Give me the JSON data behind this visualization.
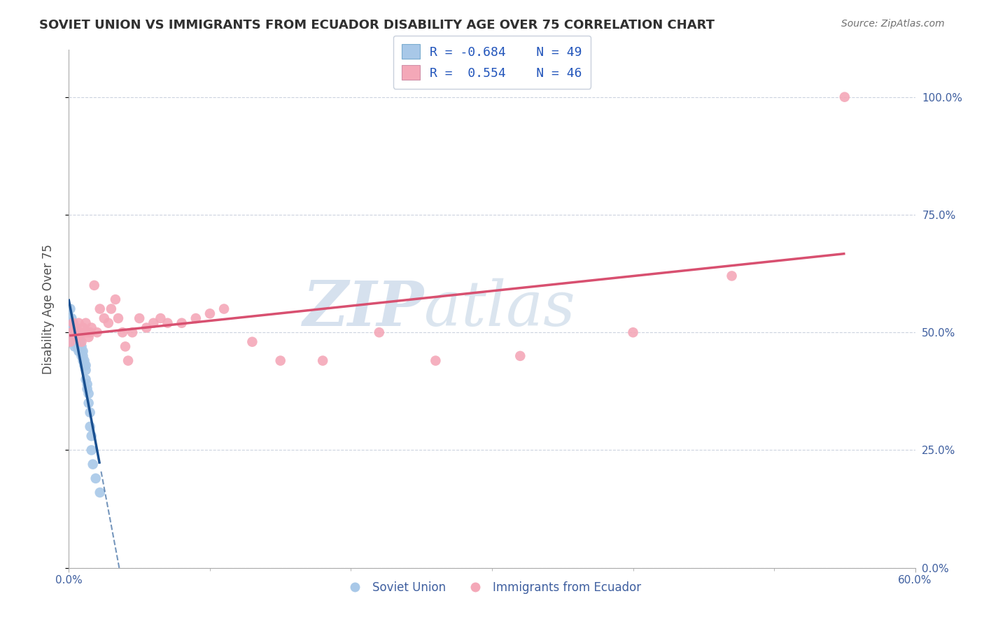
{
  "title": "SOVIET UNION VS IMMIGRANTS FROM ECUADOR DISABILITY AGE OVER 75 CORRELATION CHART",
  "source": "Source: ZipAtlas.com",
  "ylabel": "Disability Age Over 75",
  "x_min": 0.0,
  "x_max": 0.6,
  "y_min": 0.0,
  "y_max": 1.1,
  "y_tick_labels_right": [
    "0.0%",
    "25.0%",
    "50.0%",
    "75.0%",
    "100.0%"
  ],
  "y_tick_vals_right": [
    0.0,
    0.25,
    0.5,
    0.75,
    1.0
  ],
  "color_soviet": "#a8c8e8",
  "color_ecuador": "#f4a8b8",
  "color_soviet_line": "#1a5090",
  "color_ecuador_line": "#d85070",
  "watermark_zip": "ZIP",
  "watermark_atlas": "atlas",
  "soviet_x": [
    0.001,
    0.001,
    0.001,
    0.002,
    0.002,
    0.002,
    0.002,
    0.003,
    0.003,
    0.003,
    0.003,
    0.004,
    0.004,
    0.004,
    0.004,
    0.005,
    0.005,
    0.005,
    0.006,
    0.006,
    0.006,
    0.007,
    0.007,
    0.007,
    0.008,
    0.008,
    0.008,
    0.009,
    0.009,
    0.009,
    0.01,
    0.01,
    0.01,
    0.011,
    0.011,
    0.012,
    0.012,
    0.012,
    0.013,
    0.013,
    0.014,
    0.014,
    0.015,
    0.015,
    0.016,
    0.016,
    0.017,
    0.019,
    0.022
  ],
  "soviet_y": [
    0.55,
    0.52,
    0.5,
    0.53,
    0.51,
    0.5,
    0.49,
    0.52,
    0.5,
    0.49,
    0.48,
    0.51,
    0.5,
    0.49,
    0.47,
    0.5,
    0.49,
    0.48,
    0.49,
    0.48,
    0.47,
    0.49,
    0.48,
    0.46,
    0.48,
    0.47,
    0.46,
    0.47,
    0.46,
    0.45,
    0.46,
    0.45,
    0.44,
    0.44,
    0.43,
    0.43,
    0.42,
    0.4,
    0.39,
    0.38,
    0.37,
    0.35,
    0.33,
    0.3,
    0.28,
    0.25,
    0.22,
    0.19,
    0.16
  ],
  "ecuador_x": [
    0.001,
    0.002,
    0.003,
    0.004,
    0.005,
    0.006,
    0.007,
    0.008,
    0.009,
    0.01,
    0.011,
    0.012,
    0.013,
    0.014,
    0.015,
    0.016,
    0.018,
    0.02,
    0.022,
    0.025,
    0.028,
    0.03,
    0.033,
    0.035,
    0.038,
    0.04,
    0.042,
    0.045,
    0.05,
    0.055,
    0.06,
    0.065,
    0.07,
    0.08,
    0.09,
    0.1,
    0.11,
    0.13,
    0.15,
    0.18,
    0.22,
    0.26,
    0.32,
    0.4,
    0.47,
    0.55
  ],
  "ecuador_y": [
    0.48,
    0.5,
    0.52,
    0.5,
    0.51,
    0.49,
    0.52,
    0.5,
    0.48,
    0.51,
    0.5,
    0.52,
    0.5,
    0.49,
    0.5,
    0.51,
    0.6,
    0.5,
    0.55,
    0.53,
    0.52,
    0.55,
    0.57,
    0.53,
    0.5,
    0.47,
    0.44,
    0.5,
    0.53,
    0.51,
    0.52,
    0.53,
    0.52,
    0.52,
    0.53,
    0.54,
    0.55,
    0.48,
    0.44,
    0.44,
    0.5,
    0.44,
    0.45,
    0.5,
    0.62,
    1.0
  ]
}
